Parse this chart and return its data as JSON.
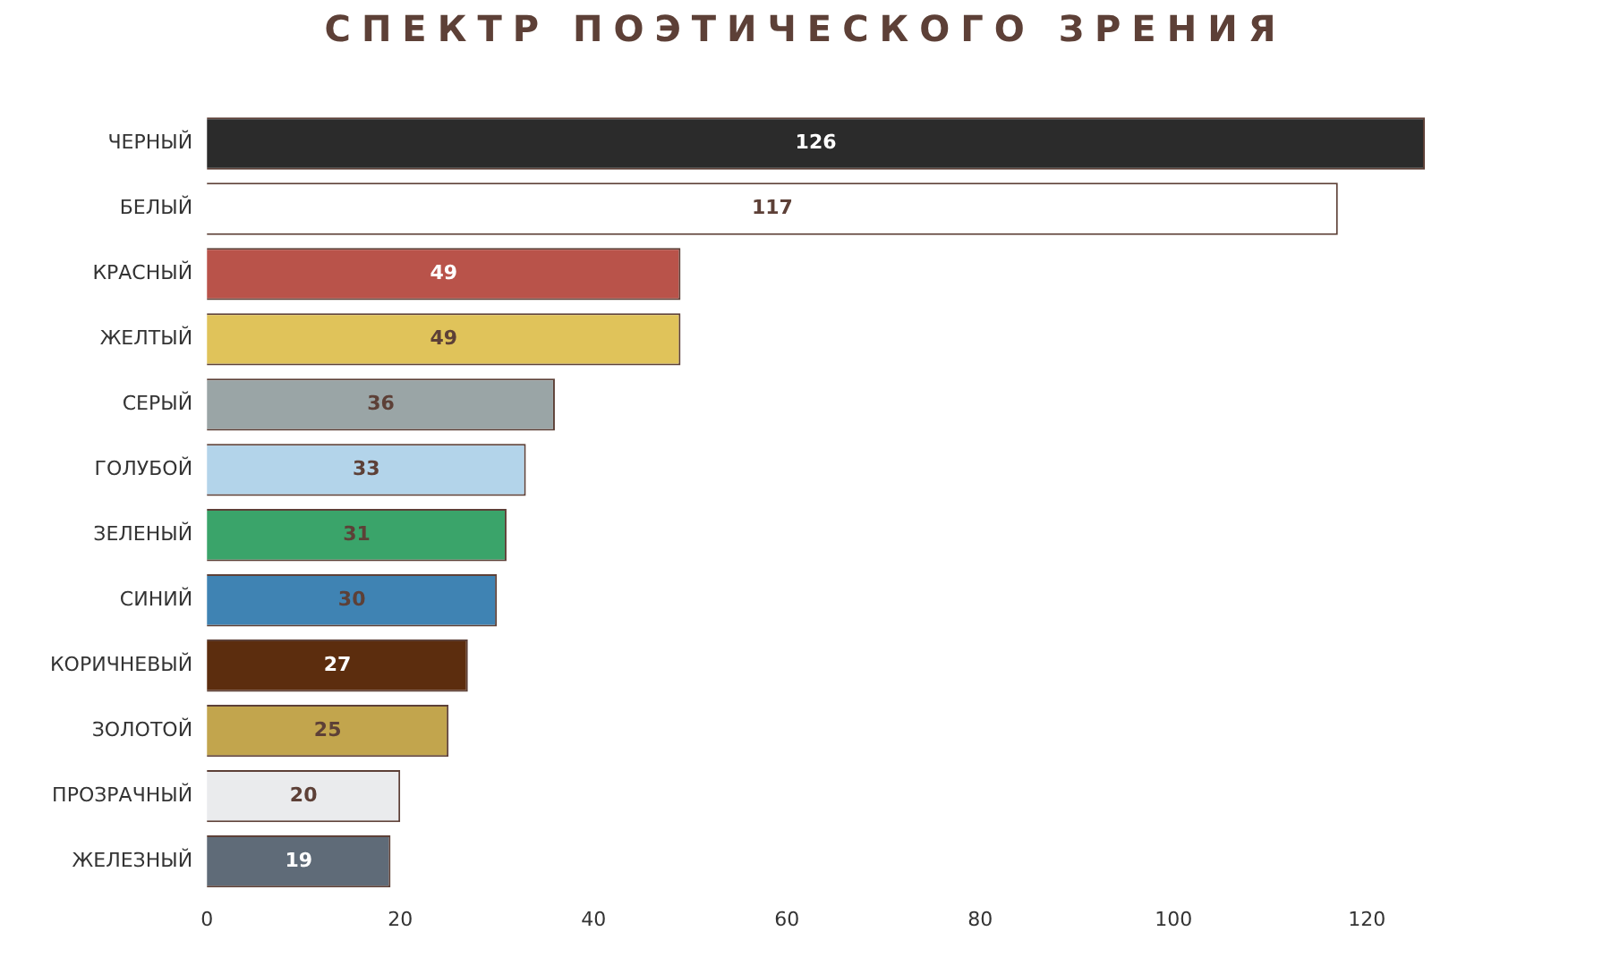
{
  "chart_data": {
    "type": "bar",
    "orientation": "horizontal",
    "title": "СПЕКТР ПОЭТИЧЕСКОГО ЗРЕНИЯ",
    "categories": [
      "ЧЕРНЫЙ",
      "БЕЛЫЙ",
      "КРАСНЫЙ",
      "ЖЕЛТЫЙ",
      "СЕРЫЙ",
      "ГОЛУБОЙ",
      "ЗЕЛЕНЫЙ",
      "СИНИЙ",
      "КОРИЧНЕВЫЙ",
      "ЗОЛОТОЙ",
      "ПРОЗРАЧНЫЙ",
      "ЖЕЛЕЗНЫЙ"
    ],
    "values": [
      126,
      117,
      49,
      49,
      36,
      33,
      31,
      30,
      27,
      25,
      20,
      19
    ],
    "colors": [
      "#2b2b2b",
      "#ffffff",
      "#b9534a",
      "#e0c35a",
      "#9aa5a6",
      "#b3d4ea",
      "#3aa46a",
      "#3f83b3",
      "#5c2d0e",
      "#c2a54d",
      "#eaebed",
      "#5f6b78"
    ],
    "xlim": [
      0,
      126
    ],
    "xticks": [
      0,
      20,
      40,
      60,
      80,
      100,
      120
    ],
    "grid": false,
    "legend": false,
    "data_labels": true
  }
}
